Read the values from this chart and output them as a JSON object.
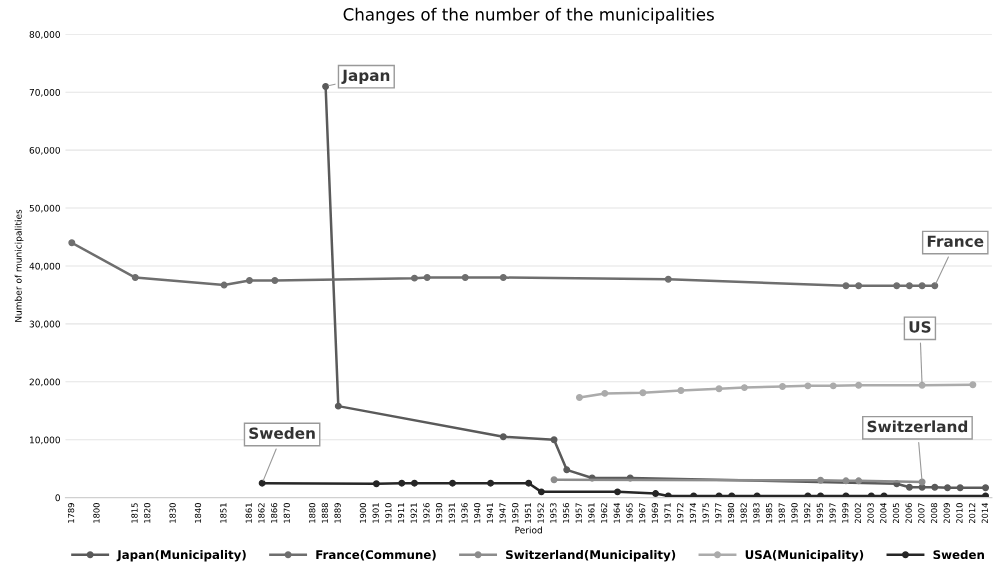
{
  "chart_data": {
    "type": "line",
    "title": "Changes of the number of the municipalities",
    "xlabel": "Period",
    "ylabel": "Number of municipalities",
    "categories": [
      "1789",
      null,
      "1800",
      null,
      null,
      "1815",
      "1820",
      null,
      "1830",
      null,
      "1840",
      null,
      "1851",
      null,
      "1861",
      "1862",
      "1866",
      "1870",
      null,
      "1880",
      "1888",
      "1889",
      null,
      "1900",
      "1901",
      "1910",
      "1911",
      "1921",
      "1926",
      "1930",
      "1931",
      "1936",
      "1940",
      "1941",
      "1947",
      "1950",
      "1951",
      "1952",
      "1953",
      "1956",
      "1957",
      "1961",
      "1962",
      "1964",
      "1965",
      "1967",
      "1969",
      "1971",
      "1972",
      "1974",
      "1975",
      "1977",
      "1980",
      "1982",
      "1983",
      "1985",
      "1987",
      "1990",
      "1992",
      "1995",
      "1997",
      "1999",
      "2002",
      "2003",
      "2004",
      "2005",
      "2006",
      "2007",
      "2008",
      "2009",
      "2010",
      "2012",
      "2014"
    ],
    "series": [
      {
        "name": "Japan(Municipality)",
        "color": "#5a5a5a",
        "values": [
          null,
          null,
          null,
          null,
          null,
          null,
          null,
          null,
          null,
          null,
          null,
          null,
          null,
          null,
          null,
          null,
          null,
          null,
          null,
          null,
          71000,
          15800,
          null,
          null,
          null,
          null,
          null,
          null,
          null,
          null,
          null,
          null,
          null,
          null,
          10500,
          null,
          null,
          null,
          10000,
          4800,
          null,
          3400,
          null,
          null,
          3400,
          null,
          null,
          null,
          null,
          null,
          null,
          null,
          null,
          null,
          null,
          null,
          null,
          null,
          null,
          null,
          null,
          null,
          null,
          null,
          null,
          2400,
          1800,
          1800,
          1800,
          1700,
          1700,
          null,
          1700
        ]
      },
      {
        "name": "France(Commune)",
        "color": "#6e6e6e",
        "values": [
          44000,
          null,
          null,
          null,
          null,
          38000,
          null,
          null,
          null,
          null,
          null,
          null,
          36700,
          null,
          37500,
          null,
          37500,
          null,
          null,
          null,
          null,
          null,
          null,
          null,
          null,
          null,
          null,
          37900,
          38000,
          null,
          null,
          38000,
          null,
          null,
          38000,
          null,
          null,
          null,
          null,
          null,
          null,
          null,
          null,
          null,
          null,
          null,
          null,
          37700,
          null,
          null,
          null,
          null,
          null,
          null,
          null,
          null,
          null,
          null,
          null,
          null,
          null,
          36600,
          36600,
          null,
          null,
          36600,
          36600,
          36600,
          36600,
          null,
          null,
          null,
          null
        ]
      },
      {
        "name": "Switzerland(Municipality)",
        "color": "#8c8c8c",
        "values": [
          null,
          null,
          null,
          null,
          null,
          null,
          null,
          null,
          null,
          null,
          null,
          null,
          null,
          null,
          null,
          null,
          null,
          null,
          null,
          null,
          null,
          null,
          null,
          null,
          null,
          null,
          null,
          null,
          null,
          null,
          null,
          null,
          null,
          null,
          null,
          null,
          null,
          null,
          3100,
          null,
          null,
          null,
          null,
          null,
          null,
          null,
          null,
          null,
          null,
          null,
          null,
          null,
          null,
          null,
          null,
          null,
          null,
          null,
          null,
          3000,
          null,
          2900,
          2900,
          null,
          null,
          null,
          null,
          2700,
          null,
          null,
          null,
          null,
          null
        ]
      },
      {
        "name": "USA(Municipality)",
        "color": "#ababab",
        "values": [
          null,
          null,
          null,
          null,
          null,
          null,
          null,
          null,
          null,
          null,
          null,
          null,
          null,
          null,
          null,
          null,
          null,
          null,
          null,
          null,
          null,
          null,
          null,
          null,
          null,
          null,
          null,
          null,
          null,
          null,
          null,
          null,
          null,
          null,
          null,
          null,
          null,
          null,
          null,
          null,
          17300,
          null,
          18000,
          null,
          null,
          18100,
          null,
          null,
          18500,
          null,
          null,
          18800,
          null,
          19000,
          null,
          null,
          19200,
          null,
          19300,
          null,
          19300,
          null,
          19400,
          null,
          null,
          null,
          null,
          19400,
          null,
          null,
          null,
          19500,
          null
        ]
      },
      {
        "name": "Sweden",
        "color": "#262626",
        "values": [
          null,
          null,
          null,
          null,
          null,
          null,
          null,
          null,
          null,
          null,
          null,
          null,
          null,
          null,
          null,
          2500,
          null,
          null,
          null,
          null,
          null,
          null,
          null,
          null,
          2400,
          null,
          2500,
          2500,
          null,
          null,
          2500,
          null,
          null,
          2500,
          null,
          null,
          2500,
          1000,
          null,
          null,
          null,
          null,
          null,
          1000,
          null,
          null,
          700,
          300,
          null,
          300,
          null,
          300,
          300,
          null,
          300,
          null,
          null,
          null,
          300,
          300,
          null,
          300,
          null,
          300,
          300,
          null,
          null,
          null,
          null,
          null,
          null,
          null,
          300
        ]
      }
    ],
    "annotations": [
      {
        "text": "Japan",
        "x": "1888",
        "y": 71000
      },
      {
        "text": "France",
        "x": "2008",
        "y": 36600
      },
      {
        "text": "US",
        "x": "2007",
        "y": 19400
      },
      {
        "text": "Switzerland",
        "x": "2007",
        "y": 2700
      },
      {
        "text": "Sweden",
        "x": "1862",
        "y": 2500
      }
    ],
    "ylim": [
      0,
      80000
    ],
    "yticks": [
      {
        "value": 0,
        "label": "0"
      },
      {
        "value": 10000,
        "label": "10,000"
      },
      {
        "value": 20000,
        "label": "20,000"
      },
      {
        "value": 30000,
        "label": "30,000"
      },
      {
        "value": 40000,
        "label": "40,000"
      },
      {
        "value": 50000,
        "label": "50,000"
      },
      {
        "value": 60000,
        "label": "60,000"
      },
      {
        "value": 70000,
        "label": "70,000"
      },
      {
        "value": 80000,
        "label": "80,000"
      }
    ],
    "grid": "y",
    "legend": "bottom",
    "marker": "circle",
    "line_style": "solid"
  }
}
